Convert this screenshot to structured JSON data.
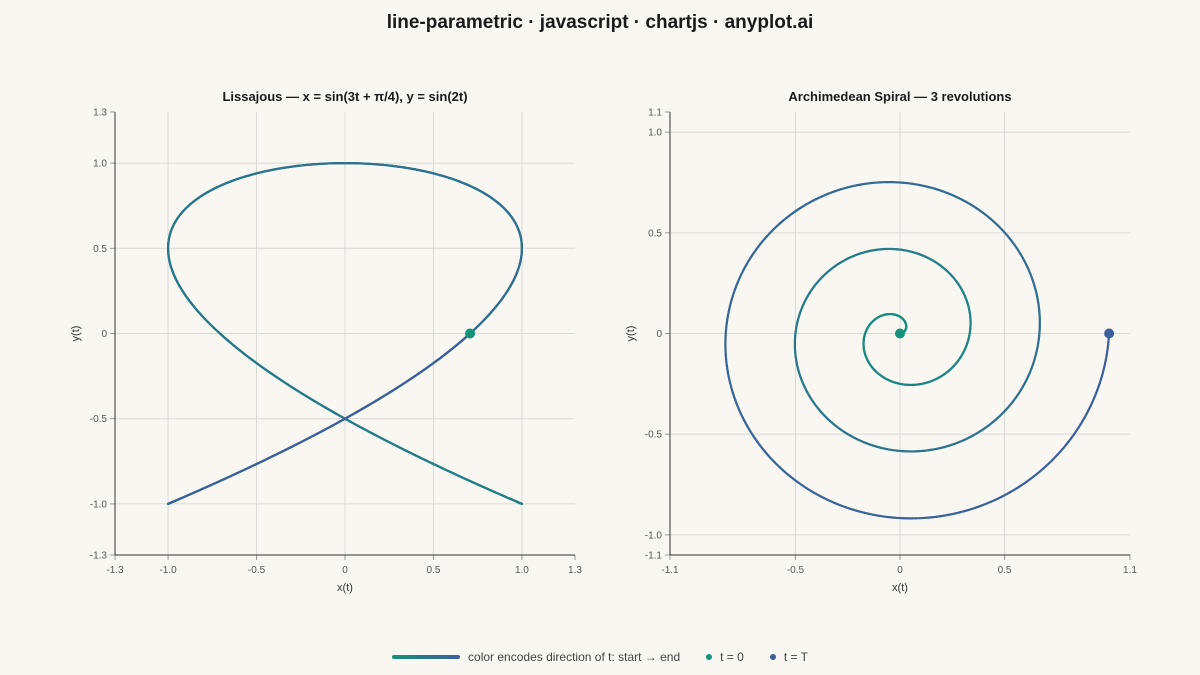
{
  "page": {
    "title": "line-parametric · javascript · chartjs · anyplot.ai"
  },
  "colors": {
    "start": "#14927a",
    "end": "#3e5e9c",
    "grid": "#d9d9d6",
    "axis": "#333333",
    "background": "#f9f7f1"
  },
  "legend": {
    "gradient_label": "color encodes direction of t: start → end",
    "start_label": "t = 0",
    "end_label": "t = T"
  },
  "chart_data": [
    {
      "type": "line",
      "title": "Lissajous — x = sin(3t + π/4), y = sin(2t)",
      "xlabel": "x(t)",
      "ylabel": "y(t)",
      "xlim": [
        -1.3,
        1.3
      ],
      "ylim": [
        -1.3,
        1.3
      ],
      "xticks": [
        -1.3,
        -1.0,
        -0.5,
        0,
        0.5,
        1.0,
        1.3
      ],
      "yticks": [
        -1.3,
        -1.0,
        -0.5,
        0,
        0.5,
        1.0,
        1.3
      ],
      "tick_labels_x": [
        "-1.3",
        "-1.0",
        "-0.5",
        "0",
        "0.5",
        "1.0",
        "1.3"
      ],
      "tick_labels_y": [
        "-1.3",
        "-1.0",
        "-0.5",
        "0",
        "0.5",
        "1.0",
        "1.3"
      ],
      "grid": true,
      "curve": "lissajous",
      "x_equation": {
        "a": 3,
        "phase": 0.7854
      },
      "y_equation": {
        "b": 2
      },
      "t_range": [
        0,
        6.2832
      ],
      "start_point": {
        "x": 0.707,
        "y": 0
      }
    },
    {
      "type": "line",
      "title": "Archimedean Spiral — 3 revolutions",
      "xlabel": "x(t)",
      "ylabel": "y(t)",
      "xlim": [
        -1.1,
        1.1
      ],
      "ylim": [
        -1.1,
        1.1
      ],
      "xticks": [
        -1.1,
        -0.5,
        0,
        0.5,
        1.1
      ],
      "yticks": [
        -1.1,
        -1.0,
        -0.5,
        0,
        0.5,
        1.0,
        1.1
      ],
      "tick_labels_x": [
        "-1.1",
        "-0.5",
        "0",
        "0.5",
        "1.1"
      ],
      "tick_labels_y": [
        "-1.1",
        "-1.0",
        "-0.5",
        "0",
        "0.5",
        "1.0",
        "1.1"
      ],
      "grid": true,
      "curve": "archimedean-spiral",
      "revolutions": 3,
      "max_radius": 1.0,
      "start_point": {
        "x": 0,
        "y": 0
      },
      "end_point": {
        "x": 1.0,
        "y": 0
      }
    }
  ]
}
